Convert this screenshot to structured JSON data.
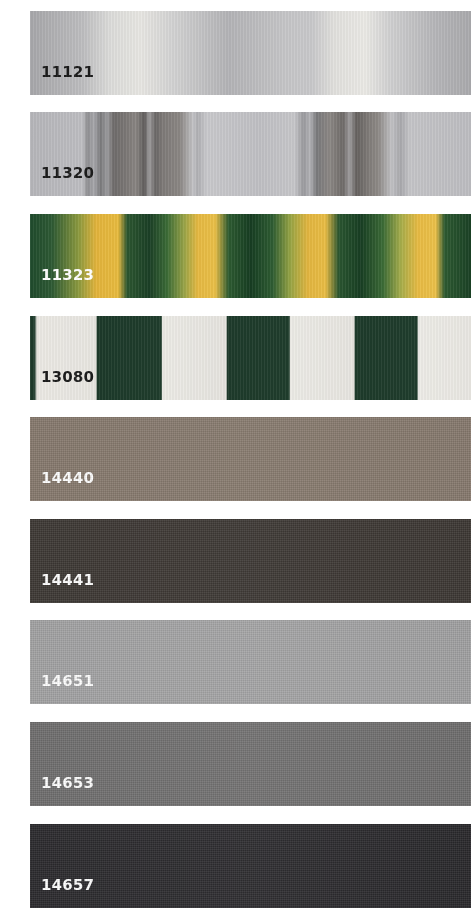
{
  "swatches": [
    {
      "code": "11121",
      "label_color": "dark"
    },
    {
      "code": "11320",
      "label_color": "dark"
    },
    {
      "code": "11323",
      "label_color": "light"
    },
    {
      "code": "13080",
      "label_color": "dark"
    },
    {
      "code": "14440",
      "label_color": "light"
    },
    {
      "code": "14441",
      "label_color": "light"
    },
    {
      "code": "14651",
      "label_color": "light"
    },
    {
      "code": "14653",
      "label_color": "light"
    },
    {
      "code": "14657",
      "label_color": "light"
    }
  ]
}
